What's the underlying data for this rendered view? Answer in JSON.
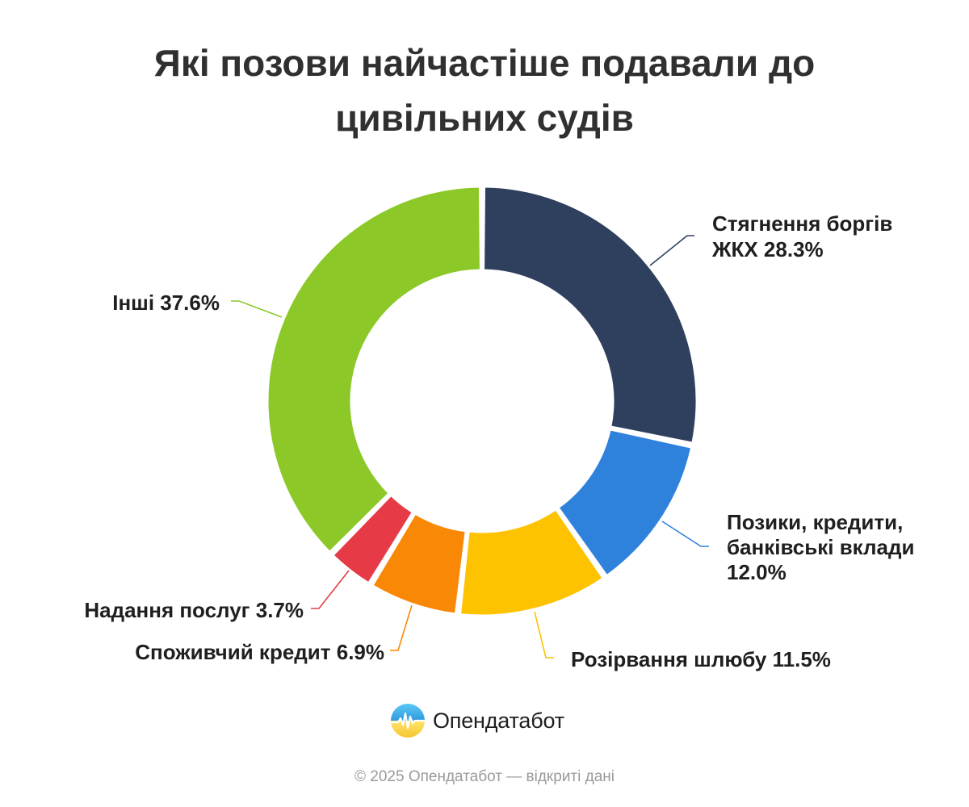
{
  "title": "Які позови найчастіше подавали до цивільних судів",
  "chart_data": {
    "type": "pie",
    "title": "Які позови найчастіше подавали до цивільних судів",
    "unit": "%",
    "series": [
      {
        "name": "",
        "values": [
          28.3,
          12.0,
          11.5,
          6.9,
          3.7,
          37.6
        ]
      }
    ],
    "categories": [
      "Стягнення боргів ЖКХ",
      "Позики, кредити, банківські вклади",
      "Розірвання шлюбу",
      "Споживчий кредит",
      "Надання послуг",
      "Інші"
    ],
    "slices": [
      {
        "label": "Стягнення боргів ЖКХ",
        "value": 28.3,
        "color": "#2f3f5e",
        "label_lines": [
          "Стягнення боргів",
          "ЖКХ 28.3%"
        ]
      },
      {
        "label": "Позики, кредити, банківські вклади",
        "value": 12.0,
        "color": "#2f82dc",
        "label_lines": [
          "Позики, кредити,",
          "банківські вклади",
          "12.0%"
        ]
      },
      {
        "label": "Розірвання шлюбу",
        "value": 11.5,
        "color": "#fdc200",
        "label_lines": [
          "Розірвання шлюбу 11.5%"
        ]
      },
      {
        "label": "Споживчий кредит",
        "value": 6.9,
        "color": "#f88805",
        "label_lines": [
          "Споживчий кредит 6.9%"
        ]
      },
      {
        "label": "Надання послуг",
        "value": 3.7,
        "color": "#e63a46",
        "label_lines": [
          "Надання послуг 3.7%"
        ]
      },
      {
        "label": "Інші",
        "value": 37.6,
        "color": "#8cc928",
        "label_lines": [
          "Інші 37.6%"
        ]
      }
    ],
    "legend": "none",
    "grid": false
  },
  "brand": {
    "name": "Опендатабот",
    "logo_icon": "opendatabot-logo-icon"
  },
  "footer": "© 2025 Опендатабот — відкриті дані"
}
